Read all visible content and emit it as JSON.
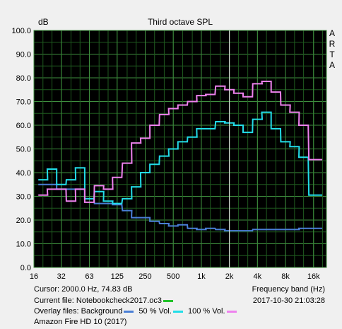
{
  "chart_data": {
    "type": "line",
    "title": "Third octave SPL",
    "ylabel": "dB",
    "xlabel": "Frequency band (Hz)",
    "side_label": [
      "A",
      "R",
      "T",
      "A"
    ],
    "ylim": [
      0,
      100
    ],
    "yticks": [
      "0.0",
      "10.0",
      "20.0",
      "30.0",
      "40.0",
      "50.0",
      "60.0",
      "70.0",
      "80.0",
      "90.0",
      "100.0"
    ],
    "xticks": [
      {
        "f": 16,
        "label": "16"
      },
      {
        "f": 31.5,
        "label": "32"
      },
      {
        "f": 63,
        "label": "63"
      },
      {
        "f": 125,
        "label": "125"
      },
      {
        "f": 250,
        "label": "250"
      },
      {
        "f": 500,
        "label": "500"
      },
      {
        "f": 1000,
        "label": "1k"
      },
      {
        "f": 2000,
        "label": "2k"
      },
      {
        "f": 4000,
        "label": "4k"
      },
      {
        "f": 8000,
        "label": "8k"
      },
      {
        "f": 16000,
        "label": "16k"
      }
    ],
    "x_range": [
      16,
      22000
    ],
    "grid": true,
    "cursor_x": 2000,
    "bands": [
      20,
      25,
      31.5,
      40,
      50,
      63,
      80,
      100,
      125,
      160,
      200,
      250,
      315,
      400,
      500,
      630,
      800,
      1000,
      1250,
      1600,
      2000,
      2500,
      3150,
      4000,
      5000,
      6300,
      8000,
      10000,
      12500,
      16000,
      20000
    ],
    "series": [
      {
        "name": "Background",
        "color": "#4a7fd6",
        "values": [
          35,
          35,
          33,
          33,
          33,
          29,
          27,
          27,
          26.5,
          24,
          21,
          21,
          19.5,
          18.5,
          17.5,
          18,
          16.5,
          16,
          16.5,
          16,
          15.5,
          15.5,
          15.5,
          16,
          16,
          16,
          16,
          16,
          16.5,
          16.5,
          16.5
        ]
      },
      {
        "name": "50 % Vol.",
        "color": "#22dde8",
        "values": [
          37,
          41.5,
          35,
          37,
          42,
          29,
          32,
          28,
          27,
          29,
          34,
          40,
          43.5,
          47,
          50,
          53,
          55,
          58.5,
          58.5,
          61.5,
          61,
          60,
          57,
          62.5,
          65.5,
          58.5,
          53,
          51,
          46.5,
          30.5,
          30.5
        ]
      },
      {
        "name": "100 % Vol.",
        "color": "#ee82ee",
        "values": [
          30.5,
          33,
          33,
          28,
          33,
          27.5,
          34.5,
          33,
          38,
          44,
          52.5,
          54.5,
          60,
          64.5,
          67,
          68.5,
          70,
          72.5,
          73,
          76.5,
          75,
          73.5,
          72,
          77.5,
          78.5,
          74,
          68.5,
          65.5,
          60,
          45.5,
          45.5
        ]
      }
    ]
  },
  "info": {
    "cursor": "Cursor:  2000.0 Hz, 74.83 dB",
    "current_file": "Current file: Notebookcheck2017.oc3",
    "current_file_color": "#22c22a",
    "overlay_prefix": "Overlay files: Background",
    "overlay_50": "50 % Vol.",
    "overlay_100": "100 % Vol.",
    "device": "Amazon Fire HD 10 (2017)",
    "freq_band_label": "Frequency band (Hz)",
    "timestamp": "2017-10-30  21:03:28"
  }
}
